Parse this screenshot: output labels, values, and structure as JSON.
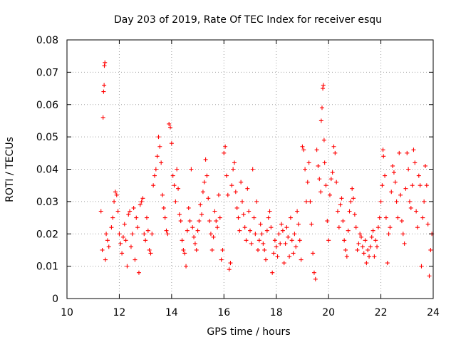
{
  "chart_data": {
    "type": "scatter",
    "title": "Day 203 of 2019, Rate Of TEC Index for receiver esqu",
    "xlabel": "GPS time / hours",
    "ylabel": "ROTI / TECUs",
    "xlim": [
      10,
      24
    ],
    "ylim": [
      0,
      0.08
    ],
    "xticks": [
      "10",
      "12",
      "14",
      "16",
      "18",
      "20",
      "22",
      "24"
    ],
    "yticks": [
      "0",
      "0.01",
      "0.02",
      "0.03",
      "0.04",
      "0.05",
      "0.06",
      "0.07",
      "0.08"
    ],
    "grid": true,
    "marker": "+",
    "series": [
      {
        "name": "ROTI",
        "color": "#ff0000",
        "points": [
          [
            11.3,
            0.027
          ],
          [
            11.35,
            0.015
          ],
          [
            11.38,
            0.056
          ],
          [
            11.4,
            0.064
          ],
          [
            11.42,
            0.066
          ],
          [
            11.43,
            0.072
          ],
          [
            11.45,
            0.073
          ],
          [
            11.47,
            0.012
          ],
          [
            11.5,
            0.02
          ],
          [
            11.55,
            0.018
          ],
          [
            11.6,
            0.016
          ],
          [
            11.7,
            0.022
          ],
          [
            11.75,
            0.025
          ],
          [
            11.8,
            0.03
          ],
          [
            11.85,
            0.033
          ],
          [
            11.9,
            0.032
          ],
          [
            11.95,
            0.027
          ],
          [
            12.0,
            0.02
          ],
          [
            12.05,
            0.017
          ],
          [
            12.1,
            0.014
          ],
          [
            12.15,
            0.019
          ],
          [
            12.2,
            0.023
          ],
          [
            12.25,
            0.018
          ],
          [
            12.3,
            0.01
          ],
          [
            12.35,
            0.026
          ],
          [
            12.4,
            0.027
          ],
          [
            12.45,
            0.016
          ],
          [
            12.5,
            0.02
          ],
          [
            12.55,
            0.028
          ],
          [
            12.6,
            0.012
          ],
          [
            12.65,
            0.025
          ],
          [
            12.7,
            0.022
          ],
          [
            12.75,
            0.008
          ],
          [
            12.8,
            0.029
          ],
          [
            12.85,
            0.03
          ],
          [
            12.9,
            0.031
          ],
          [
            12.95,
            0.02
          ],
          [
            13.0,
            0.018
          ],
          [
            13.05,
            0.025
          ],
          [
            13.1,
            0.021
          ],
          [
            13.15,
            0.015
          ],
          [
            13.2,
            0.014
          ],
          [
            13.25,
            0.02
          ],
          [
            13.3,
            0.035
          ],
          [
            13.35,
            0.038
          ],
          [
            13.4,
            0.04
          ],
          [
            13.45,
            0.044
          ],
          [
            13.5,
            0.05
          ],
          [
            13.55,
            0.047
          ],
          [
            13.6,
            0.042
          ],
          [
            13.65,
            0.032
          ],
          [
            13.7,
            0.028
          ],
          [
            13.75,
            0.025
          ],
          [
            13.8,
            0.021
          ],
          [
            13.85,
            0.02
          ],
          [
            13.9,
            0.054
          ],
          [
            13.95,
            0.053
          ],
          [
            14.0,
            0.048
          ],
          [
            14.05,
            0.038
          ],
          [
            14.1,
            0.035
          ],
          [
            14.15,
            0.03
          ],
          [
            14.2,
            0.04
          ],
          [
            14.25,
            0.034
          ],
          [
            14.3,
            0.026
          ],
          [
            14.35,
            0.024
          ],
          [
            14.4,
            0.018
          ],
          [
            14.45,
            0.015
          ],
          [
            14.5,
            0.014
          ],
          [
            14.55,
            0.01
          ],
          [
            14.6,
            0.021
          ],
          [
            14.65,
            0.028
          ],
          [
            14.7,
            0.024
          ],
          [
            14.75,
            0.04
          ],
          [
            14.8,
            0.022
          ],
          [
            14.85,
            0.019
          ],
          [
            14.9,
            0.017
          ],
          [
            14.95,
            0.015
          ],
          [
            15.0,
            0.021
          ],
          [
            15.05,
            0.024
          ],
          [
            15.1,
            0.029
          ],
          [
            15.15,
            0.026
          ],
          [
            15.2,
            0.033
          ],
          [
            15.25,
            0.036
          ],
          [
            15.3,
            0.043
          ],
          [
            15.35,
            0.038
          ],
          [
            15.4,
            0.031
          ],
          [
            15.45,
            0.024
          ],
          [
            15.5,
            0.02
          ],
          [
            15.55,
            0.015
          ],
          [
            15.6,
            0.019
          ],
          [
            15.65,
            0.027
          ],
          [
            15.7,
            0.024
          ],
          [
            15.75,
            0.022
          ],
          [
            15.8,
            0.032
          ],
          [
            15.85,
            0.025
          ],
          [
            15.9,
            0.012
          ],
          [
            15.95,
            0.015
          ],
          [
            16.0,
            0.045
          ],
          [
            16.05,
            0.047
          ],
          [
            16.1,
            0.038
          ],
          [
            16.15,
            0.032
          ],
          [
            16.2,
            0.009
          ],
          [
            16.25,
            0.011
          ],
          [
            16.3,
            0.035
          ],
          [
            16.35,
            0.04
          ],
          [
            16.4,
            0.042
          ],
          [
            16.45,
            0.033
          ],
          [
            16.5,
            0.028
          ],
          [
            16.55,
            0.025
          ],
          [
            16.6,
            0.021
          ],
          [
            16.65,
            0.036
          ],
          [
            16.7,
            0.03
          ],
          [
            16.75,
            0.026
          ],
          [
            16.8,
            0.022
          ],
          [
            16.85,
            0.018
          ],
          [
            16.9,
            0.034
          ],
          [
            16.95,
            0.027
          ],
          [
            17.0,
            0.021
          ],
          [
            17.05,
            0.017
          ],
          [
            17.1,
            0.04
          ],
          [
            17.15,
            0.025
          ],
          [
            17.2,
            0.02
          ],
          [
            17.25,
            0.03
          ],
          [
            17.3,
            0.015
          ],
          [
            17.35,
            0.018
          ],
          [
            17.4,
            0.023
          ],
          [
            17.45,
            0.02
          ],
          [
            17.5,
            0.017
          ],
          [
            17.55,
            0.015
          ],
          [
            17.6,
            0.012
          ],
          [
            17.65,
            0.021
          ],
          [
            17.7,
            0.025
          ],
          [
            17.75,
            0.027
          ],
          [
            17.8,
            0.022
          ],
          [
            17.85,
            0.008
          ],
          [
            17.9,
            0.014
          ],
          [
            17.95,
            0.018
          ],
          [
            18.0,
            0.016
          ],
          [
            18.05,
            0.013
          ],
          [
            18.1,
            0.02
          ],
          [
            18.15,
            0.017
          ],
          [
            18.2,
            0.023
          ],
          [
            18.25,
            0.021
          ],
          [
            18.3,
            0.011
          ],
          [
            18.35,
            0.017
          ],
          [
            18.4,
            0.022
          ],
          [
            18.45,
            0.019
          ],
          [
            18.5,
            0.013
          ],
          [
            18.55,
            0.025
          ],
          [
            18.6,
            0.018
          ],
          [
            18.65,
            0.014
          ],
          [
            18.7,
            0.02
          ],
          [
            18.75,
            0.016
          ],
          [
            18.8,
            0.027
          ],
          [
            18.85,
            0.023
          ],
          [
            18.9,
            0.018
          ],
          [
            18.95,
            0.012
          ],
          [
            19.0,
            0.047
          ],
          [
            19.05,
            0.046
          ],
          [
            19.1,
            0.04
          ],
          [
            19.15,
            0.03
          ],
          [
            19.2,
            0.036
          ],
          [
            19.25,
            0.042
          ],
          [
            19.3,
            0.03
          ],
          [
            19.35,
            0.023
          ],
          [
            19.4,
            0.014
          ],
          [
            19.45,
            0.008
          ],
          [
            19.5,
            0.006
          ],
          [
            19.55,
            0.046
          ],
          [
            19.6,
            0.041
          ],
          [
            19.65,
            0.037
          ],
          [
            19.7,
            0.033
          ],
          [
            19.72,
            0.055
          ],
          [
            19.75,
            0.059
          ],
          [
            19.78,
            0.065
          ],
          [
            19.8,
            0.066
          ],
          [
            19.83,
            0.049
          ],
          [
            19.85,
            0.042
          ],
          [
            19.9,
            0.035
          ],
          [
            19.95,
            0.024
          ],
          [
            20.0,
            0.018
          ],
          [
            20.05,
            0.032
          ],
          [
            20.1,
            0.037
          ],
          [
            20.15,
            0.039
          ],
          [
            20.2,
            0.047
          ],
          [
            20.25,
            0.045
          ],
          [
            20.3,
            0.036
          ],
          [
            20.35,
            0.027
          ],
          [
            20.4,
            0.022
          ],
          [
            20.45,
            0.029
          ],
          [
            20.5,
            0.031
          ],
          [
            20.55,
            0.024
          ],
          [
            20.6,
            0.018
          ],
          [
            20.65,
            0.015
          ],
          [
            20.7,
            0.013
          ],
          [
            20.75,
            0.021
          ],
          [
            20.8,
            0.027
          ],
          [
            20.85,
            0.03
          ],
          [
            20.9,
            0.034
          ],
          [
            20.95,
            0.031
          ],
          [
            21.0,
            0.026
          ],
          [
            21.05,
            0.022
          ],
          [
            21.1,
            0.015
          ],
          [
            21.15,
            0.017
          ],
          [
            21.2,
            0.02
          ],
          [
            21.25,
            0.019
          ],
          [
            21.3,
            0.016
          ],
          [
            21.35,
            0.014
          ],
          [
            21.4,
            0.018
          ],
          [
            21.45,
            0.011
          ],
          [
            21.5,
            0.015
          ],
          [
            21.55,
            0.013
          ],
          [
            21.6,
            0.016
          ],
          [
            21.65,
            0.019
          ],
          [
            21.7,
            0.021
          ],
          [
            21.75,
            0.013
          ],
          [
            21.8,
            0.018
          ],
          [
            21.85,
            0.016
          ],
          [
            21.9,
            0.022
          ],
          [
            21.95,
            0.025
          ],
          [
            22.0,
            0.03
          ],
          [
            22.05,
            0.035
          ],
          [
            22.08,
            0.046
          ],
          [
            22.1,
            0.044
          ],
          [
            22.15,
            0.038
          ],
          [
            22.2,
            0.025
          ],
          [
            22.25,
            0.011
          ],
          [
            22.3,
            0.02
          ],
          [
            22.35,
            0.022
          ],
          [
            22.4,
            0.033
          ],
          [
            22.45,
            0.041
          ],
          [
            22.5,
            0.039
          ],
          [
            22.55,
            0.036
          ],
          [
            22.6,
            0.03
          ],
          [
            22.65,
            0.025
          ],
          [
            22.7,
            0.045
          ],
          [
            22.75,
            0.032
          ],
          [
            22.8,
            0.024
          ],
          [
            22.85,
            0.02
          ],
          [
            22.9,
            0.017
          ],
          [
            22.95,
            0.034
          ],
          [
            23.0,
            0.045
          ],
          [
            23.05,
            0.04
          ],
          [
            23.1,
            0.03
          ],
          [
            23.15,
            0.028
          ],
          [
            23.2,
            0.035
          ],
          [
            23.25,
            0.046
          ],
          [
            23.3,
            0.042
          ],
          [
            23.35,
            0.027
          ],
          [
            23.4,
            0.022
          ],
          [
            23.45,
            0.038
          ],
          [
            23.5,
            0.035
          ],
          [
            23.55,
            0.01
          ],
          [
            23.6,
            0.025
          ],
          [
            23.65,
            0.03
          ],
          [
            23.7,
            0.041
          ],
          [
            23.75,
            0.035
          ],
          [
            23.8,
            0.023
          ],
          [
            23.85,
            0.007
          ],
          [
            23.9,
            0.015
          ],
          [
            23.95,
            0.02
          ]
        ]
      }
    ]
  }
}
